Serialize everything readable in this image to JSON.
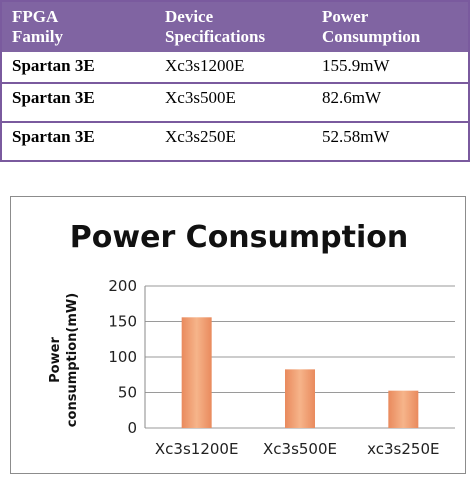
{
  "table": {
    "headers": [
      [
        "FPGA",
        "Family"
      ],
      [
        "Device",
        "Specifications"
      ],
      [
        "Power",
        "Consumption"
      ]
    ],
    "rows": [
      {
        "family": "Spartan 3E",
        "device": "Xc3s1200E",
        "power": "155.9mW"
      },
      {
        "family": "Spartan 3E",
        "device": "Xc3s500E",
        "power": "82.6mW"
      },
      {
        "family": "Spartan 3E",
        "device": "Xc3s250E",
        "power": "52.58mW"
      }
    ],
    "colors": {
      "header_bg": "#8064a2",
      "border": "#7a5a9e"
    }
  },
  "chart_data": {
    "type": "bar",
    "title": "Power Consumption",
    "ylabel": [
      "Power",
      "consumption(mW)"
    ],
    "xlabel": "",
    "categories": [
      "Xc3s1200E",
      "Xc3s500E",
      "xc3s250E"
    ],
    "values": [
      155.9,
      82.6,
      52.58
    ],
    "ylim": [
      0,
      200
    ],
    "yticks": [
      0,
      50,
      100,
      150,
      200
    ],
    "grid": true,
    "legend": "none",
    "bar_color": "#f0a070"
  }
}
